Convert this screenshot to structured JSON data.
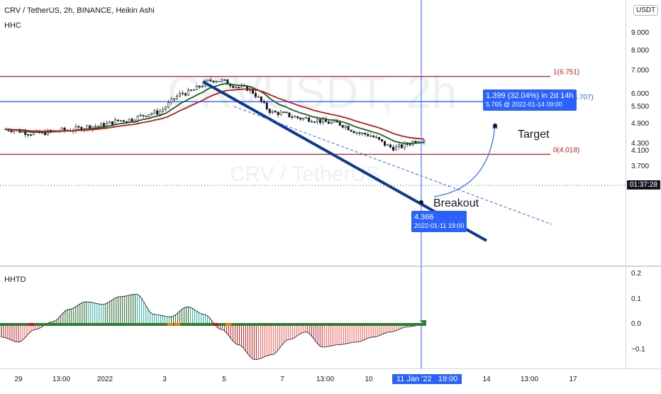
{
  "header": {
    "symbol_line": "CRV / TetherUS, 2h, BINANCE, Heikin Ashi",
    "indicator": "HHC",
    "currency": "USDT"
  },
  "watermark": {
    "main": "CRVUSDT, 2h",
    "sub": "CRV / TetherUS"
  },
  "price_scale": {
    "ticks": [
      {
        "label": "9.000",
        "value": 9.0
      },
      {
        "label": "8.000",
        "value": 8.0
      },
      {
        "label": "7.000",
        "value": 7.0
      },
      {
        "label": "6.000",
        "value": 6.0
      },
      {
        "label": "5.500",
        "value": 5.5
      },
      {
        "label": "4.900",
        "value": 4.9
      },
      {
        "label": "4.300",
        "value": 4.3
      },
      {
        "label": "4.100",
        "value": 4.1
      },
      {
        "label": "3.700",
        "value": 3.7
      }
    ],
    "countdown": "01:37:28"
  },
  "time_axis": {
    "labels": [
      "29",
      "13:00",
      "2022",
      "3",
      "5",
      "7",
      "13:00",
      "10",
      "14",
      "13:00",
      "17"
    ],
    "crosshair_label": "11 Jan '22   19:00"
  },
  "fib_levels": [
    {
      "label": "1(6.751)",
      "price": 6.751,
      "color": "#b71c1c"
    },
    {
      "label": "0.618(5.707)",
      "price": 5.707,
      "color": "#2962ff"
    },
    {
      "label": "0(4.018)",
      "price": 4.018,
      "color": "#b71c1c"
    }
  ],
  "annotations": {
    "target_text": "Target",
    "breakout_text": "Breakout",
    "measure_line1": "1.399 (32.04%) in 2d 14h",
    "measure_line2": "5.765 @ 2022-01-14  09:00",
    "crosshair_price": "4.366",
    "crosshair_time": "2022-01-11 19:00"
  },
  "oscillator": {
    "name": "HHTD",
    "ticks": [
      {
        "label": "0.2",
        "value": 0.2
      },
      {
        "label": "0.1",
        "value": 0.1
      },
      {
        "label": "0.0",
        "value": 0.0
      },
      {
        "label": "−0.1",
        "value": -0.1
      }
    ]
  },
  "colors": {
    "up": "#26a69a",
    "down": "#ef5350",
    "fast_ma": "#1b5e20",
    "slow_ma": "#b71c1c",
    "trendline": "#0d3a8f",
    "accent": "#2962ff"
  },
  "chart_data": [
    {
      "type": "candlestick",
      "title": "CRV / TetherUS, 2h, BINANCE, Heikin Ashi",
      "ylim": [
        3.55,
        9.1
      ],
      "close_path": [
        {
          "date": "2021-12-28",
          "close": 4.75
        },
        {
          "date": "2021-12-29",
          "close": 4.62
        },
        {
          "date": "2021-12-30",
          "close": 4.72
        },
        {
          "date": "2021-12-31",
          "close": 4.85
        },
        {
          "date": "2022-01-01",
          "close": 5.05
        },
        {
          "date": "2022-01-02",
          "close": 5.3
        },
        {
          "date": "2022-01-03",
          "close": 6.05
        },
        {
          "date": "2022-01-04",
          "close": 6.6
        },
        {
          "date": "2022-01-05",
          "close": 6.25
        },
        {
          "date": "2022-01-06",
          "close": 5.3
        },
        {
          "date": "2022-01-07",
          "close": 5.1
        },
        {
          "date": "2022-01-08",
          "close": 4.95
        },
        {
          "date": "2022-01-09",
          "close": 4.6
        },
        {
          "date": "2022-01-10",
          "close": 4.2
        },
        {
          "date": "2022-01-11",
          "close": 4.45
        }
      ],
      "last_price": 4.366
    },
    {
      "type": "histogram",
      "title": "HHTD",
      "ylim": [
        -0.18,
        0.22
      ],
      "values": [
        -0.05,
        -0.07,
        -0.02,
        0.01,
        0.06,
        0.09,
        0.08,
        0.11,
        0.12,
        0.04,
        0.03,
        0.07,
        0.04,
        -0.02,
        -0.08,
        -0.14,
        -0.12,
        -0.06,
        -0.03,
        -0.09,
        -0.08,
        -0.07,
        -0.05,
        -0.03,
        -0.01,
        0.0
      ]
    }
  ]
}
